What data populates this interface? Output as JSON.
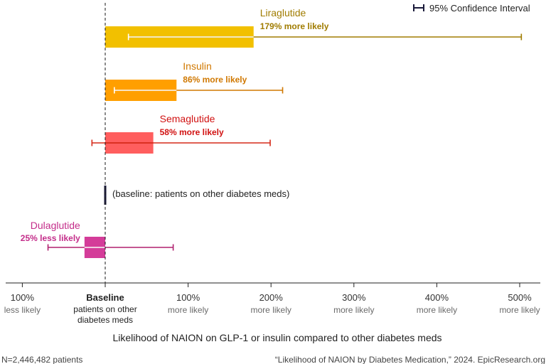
{
  "chart_data": {
    "type": "bar",
    "orientation": "horizontal",
    "xlabel": "Likelihood of NAION on GLP-1 or insulin compared to other diabetes meds",
    "legend": {
      "label": "95% Confidence Interval",
      "position": "top-right"
    },
    "baseline_note": "(baseline: patients on other diabetes meds)",
    "x_ticks": [
      {
        "value": -100,
        "label": "100%",
        "sub": "less likely"
      },
      {
        "value": 0,
        "label": "Baseline",
        "sub": "patients on other",
        "sub2": "diabetes meds"
      },
      {
        "value": 100,
        "label": "100%",
        "sub": "more likely"
      },
      {
        "value": 200,
        "label": "200%",
        "sub": "more likely"
      },
      {
        "value": 300,
        "label": "300%",
        "sub": "more likely"
      },
      {
        "value": 400,
        "label": "400%",
        "sub": "more likely"
      },
      {
        "value": 500,
        "label": "500%",
        "sub": "more likely"
      }
    ],
    "xlim": [
      -120,
      530
    ],
    "series": [
      {
        "name": "Liraglutide",
        "label": "179% more likely",
        "value": 179,
        "ci_low": 28,
        "ci_high": 502,
        "color": "#f2c000",
        "text_color": "#a07c00",
        "ci_color": "#a07c00",
        "ci_inside": "#ffffff"
      },
      {
        "name": "Insulin",
        "label": "86% more likely",
        "value": 86,
        "ci_low": 11,
        "ci_high": 214,
        "color": "#ff9f00",
        "text_color": "#d07800",
        "ci_color": "#d07800",
        "ci_inside": "#ffffff"
      },
      {
        "name": "Semaglutide",
        "label": "58% more likely",
        "value": 58,
        "ci_low": -16,
        "ci_high": 199,
        "color": "#ff5e5e",
        "text_color": "#d11212",
        "ci_color": "#d62a1a",
        "ci_inside": "#d62a1a"
      },
      {
        "name": "Dulaglutide",
        "label": "25% less likely",
        "value": -25,
        "ci_low": -69,
        "ci_high": 82,
        "color": "#d43c99",
        "text_color": "#c42d8a",
        "ci_color": "#b0206f",
        "ci_inside": "#ffffff"
      }
    ],
    "grid": false
  },
  "footer": {
    "left": "N=2,446,482 patients",
    "right": "“Likelihood of NAION by Diabetes Medication,” 2024. EpicResearch.org"
  }
}
